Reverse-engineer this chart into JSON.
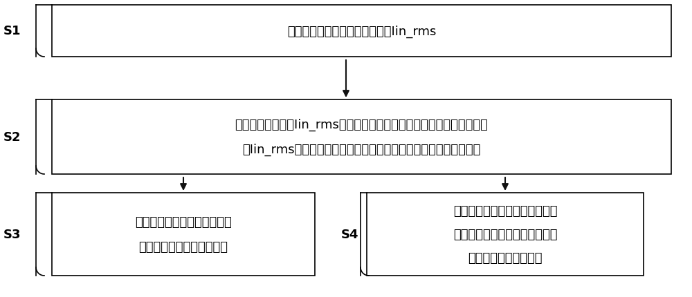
{
  "background_color": "#ffffff",
  "border_color": "#000000",
  "arrow_color": "#111111",
  "label_color": "#000000",
  "box_fill": "#ffffff",
  "box_edge": "#000000",
  "s1_label": "S1",
  "s2_label": "S2",
  "s3_label": "S3",
  "s4_label": "S4",
  "box1_text": "获取变频空调的输入电流有效值Iin_rms",
  "box2_line1": "将输入电流有效值Iin_rms减去预设的电流限频阈值以获取输入电流有效",
  "box2_line2": "值Iin_rms与电流限频阈值之间的电流差值，并对电流差值进行判断",
  "box3_line1": "如果电流差值大于等于第一阈",
  "box3_line2": "值，则控制压缩机停止运行",
  "box4_line1": "如果电流差值大于等于第二阈值",
  "box4_line2": "且小于第一阈值，则控制压缩机",
  "box4_line3": "按照预设步长降频运行",
  "fig_width": 10.0,
  "fig_height": 4.31,
  "dpi": 100
}
